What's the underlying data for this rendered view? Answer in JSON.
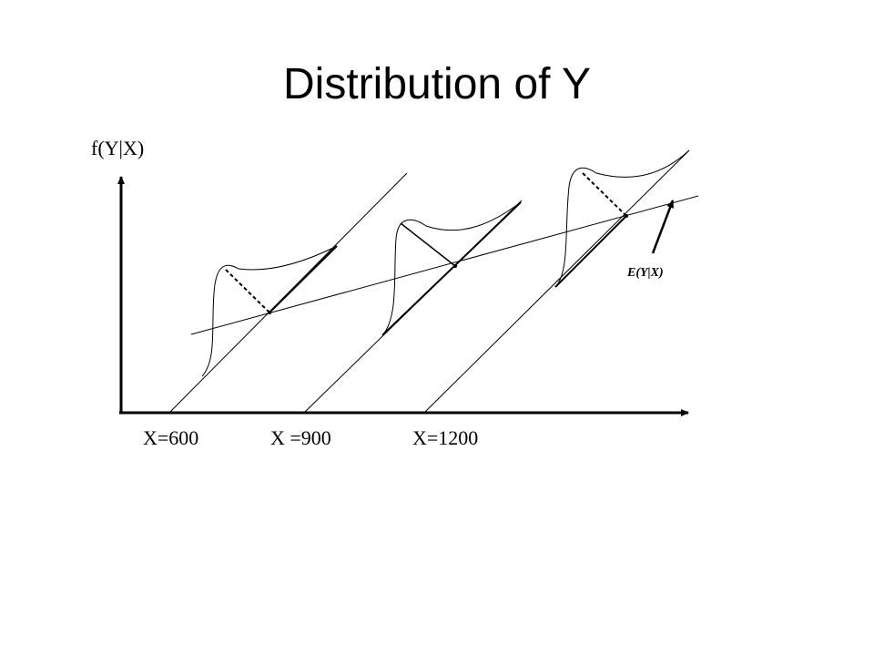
{
  "title": "Distribution of Y",
  "diagram": {
    "y_axis_label": "f(Y|X)",
    "x_labels": [
      "X=600",
      "X =900",
      "X=1200"
    ],
    "regression_label": "E(Y|X)"
  }
}
